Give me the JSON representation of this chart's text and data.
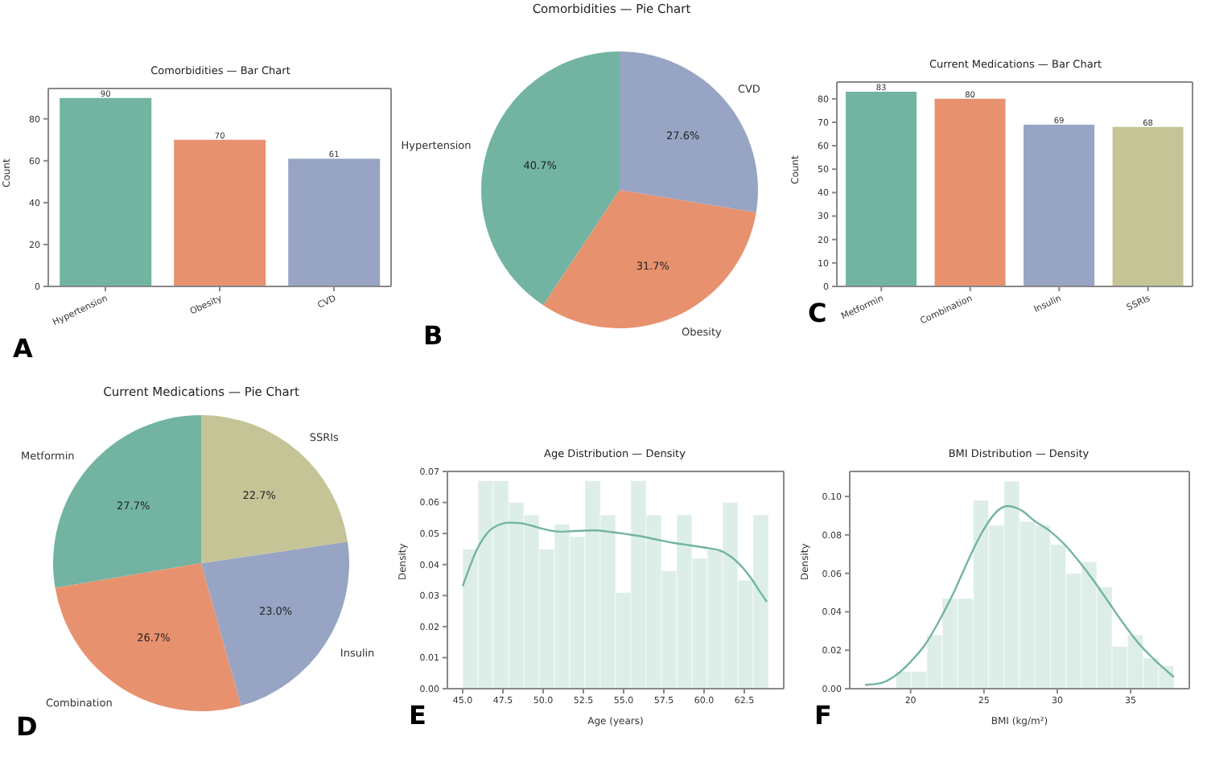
{
  "chart_data": [
    {
      "type": "bar",
      "title": "Comorbidities — Bar Chart",
      "ylabel": "Count",
      "categories": [
        "Hypertension",
        "Obesity",
        "CVD"
      ],
      "values": [
        90,
        70,
        61
      ],
      "colors": [
        "#72b4a1",
        "#e8916f",
        "#97a4c4"
      ],
      "ylim": [
        0,
        94.5
      ],
      "yticks": [
        0,
        20,
        40,
        60,
        80
      ],
      "data_labels": true,
      "annotations": [
        "A"
      ]
    },
    {
      "type": "pie",
      "title": "Comorbidities — Pie Chart",
      "categories": [
        "Hypertension",
        "Obesity",
        "CVD"
      ],
      "values": [
        40.7,
        31.7,
        27.6
      ],
      "value_labels": [
        "40.7%",
        "31.7%",
        "27.6%"
      ],
      "colors": [
        "#72b4a1",
        "#e8916f",
        "#97a4c4"
      ],
      "annotations": [
        "B"
      ]
    },
    {
      "type": "bar",
      "title": "Current Medications — Bar Chart",
      "ylabel": "Count",
      "categories": [
        "Metformin",
        "Combination",
        "Insulin",
        "SSRIs"
      ],
      "values": [
        83,
        80,
        69,
        68
      ],
      "colors": [
        "#72b4a1",
        "#e8916f",
        "#97a4c4",
        "#c5c496"
      ],
      "ylim": [
        0,
        87.15
      ],
      "yticks": [
        0,
        10,
        20,
        30,
        40,
        50,
        60,
        70,
        80
      ],
      "data_labels": true,
      "annotations": [
        "C"
      ]
    },
    {
      "type": "pie",
      "title": "Current Medications — Pie Chart",
      "categories": [
        "Metformin",
        "Combination",
        "Insulin",
        "SSRIs"
      ],
      "values": [
        27.7,
        26.7,
        23.0,
        22.7
      ],
      "value_labels": [
        "27.7%",
        "26.7%",
        "23.0%",
        "22.7%"
      ],
      "colors": [
        "#72b4a1",
        "#e8916f",
        "#97a4c4",
        "#c5c496"
      ],
      "annotations": [
        "D"
      ]
    },
    {
      "type": "histogram",
      "title": "Age Distribution — Density",
      "xlabel": "Age (years)",
      "ylabel": "Density",
      "bins": [
        45,
        45.95,
        46.9,
        47.85,
        48.8,
        49.75,
        50.7,
        51.65,
        52.6,
        53.55,
        54.5,
        55.45,
        56.4,
        57.35,
        58.3,
        59.25,
        60.2,
        61.15,
        62.1,
        63.05,
        64
      ],
      "values": [
        0.045,
        0.067,
        0.067,
        0.06,
        0.056,
        0.045,
        0.053,
        0.049,
        0.067,
        0.056,
        0.031,
        0.067,
        0.056,
        0.038,
        0.056,
        0.042,
        0.045,
        0.06,
        0.035,
        0.056
      ],
      "color": "#ddeee8",
      "series": [
        {
          "type": "line",
          "color": "#72b4a1",
          "x": [
            45,
            45.9,
            46.5,
            47.2,
            47.9,
            48.6,
            49.3,
            50,
            51,
            52,
            53.2,
            54.2,
            55.2,
            56.2,
            57.1,
            58.1,
            59.1,
            60,
            61,
            61.8,
            62.4,
            63,
            63.5,
            63.9
          ],
          "values": [
            0.033,
            0.045,
            0.05,
            0.0527,
            0.0535,
            0.0533,
            0.0525,
            0.0515,
            0.0506,
            0.0508,
            0.051,
            0.0505,
            0.0498,
            0.049,
            0.048,
            0.047,
            0.0462,
            0.0455,
            0.0445,
            0.042,
            0.039,
            0.035,
            0.031,
            0.028
          ]
        }
      ],
      "xlim": [
        44.05,
        64.95
      ],
      "xticks": [
        {
          "value": 45,
          "label": "45.0"
        },
        {
          "value": 47.5,
          "label": "47.5"
        },
        {
          "value": 50,
          "label": "50.0"
        },
        {
          "value": 52.5,
          "label": "52.5"
        },
        {
          "value": 55,
          "label": "55.0"
        },
        {
          "value": 57.5,
          "label": "57.5"
        },
        {
          "value": 60,
          "label": "60.0"
        },
        {
          "value": 62.5,
          "label": "62.5"
        }
      ],
      "ylim": [
        0,
        0.07
      ],
      "yticks": [
        {
          "value": 0,
          "label": "0.00"
        },
        {
          "value": 0.01,
          "label": "0.01"
        },
        {
          "value": 0.02,
          "label": "0.02"
        },
        {
          "value": 0.03,
          "label": "0.03"
        },
        {
          "value": 0.04,
          "label": "0.04"
        },
        {
          "value": 0.05,
          "label": "0.05"
        },
        {
          "value": 0.06,
          "label": "0.06"
        },
        {
          "value": 0.07,
          "label": "0.07"
        }
      ],
      "annotations": [
        "E"
      ]
    },
    {
      "type": "histogram",
      "title": "BMI Distribution — Density",
      "xlabel": "BMI (kg/m²)",
      "ylabel": "Density",
      "bins": [
        19,
        20.05,
        21.11,
        22.16,
        23.21,
        24.27,
        25.32,
        26.37,
        27.42,
        28.48,
        29.53,
        30.58,
        31.64,
        32.69,
        33.74,
        34.79,
        35.85,
        36.9,
        37.95
      ],
      "values": [
        0.009,
        0.009,
        0.028,
        0.047,
        0.047,
        0.098,
        0.085,
        0.108,
        0.087,
        0.085,
        0.075,
        0.06,
        0.066,
        0.053,
        0.022,
        0.028,
        0.016,
        0.012
      ],
      "color": "#ddeee8",
      "series": [
        {
          "type": "line",
          "color": "#72b4a1",
          "x": [
            16.9,
            18,
            19,
            20,
            21,
            22,
            23,
            24,
            25,
            26,
            26.6,
            27.5,
            28.5,
            29.5,
            30.5,
            31.5,
            32.5,
            33.5,
            34.5,
            35.5,
            36.5,
            37.5,
            37.95
          ],
          "values": [
            0.002,
            0.003,
            0.007,
            0.014,
            0.023,
            0.036,
            0.051,
            0.068,
            0.083,
            0.093,
            0.095,
            0.093,
            0.087,
            0.082,
            0.075,
            0.066,
            0.056,
            0.045,
            0.034,
            0.024,
            0.016,
            0.009,
            0.006
          ]
        }
      ],
      "xlim": [
        15.85,
        39.0
      ],
      "xticks": [
        20,
        25,
        30,
        35
      ],
      "ylim": [
        0,
        0.113
      ],
      "yticks": [
        {
          "value": 0,
          "label": "0.00"
        },
        {
          "value": 0.02,
          "label": "0.02"
        },
        {
          "value": 0.04,
          "label": "0.04"
        },
        {
          "value": 0.06,
          "label": "0.06"
        },
        {
          "value": 0.08,
          "label": "0.08"
        },
        {
          "value": 0.1,
          "label": "0.10"
        }
      ],
      "annotations": [
        "F"
      ]
    }
  ]
}
